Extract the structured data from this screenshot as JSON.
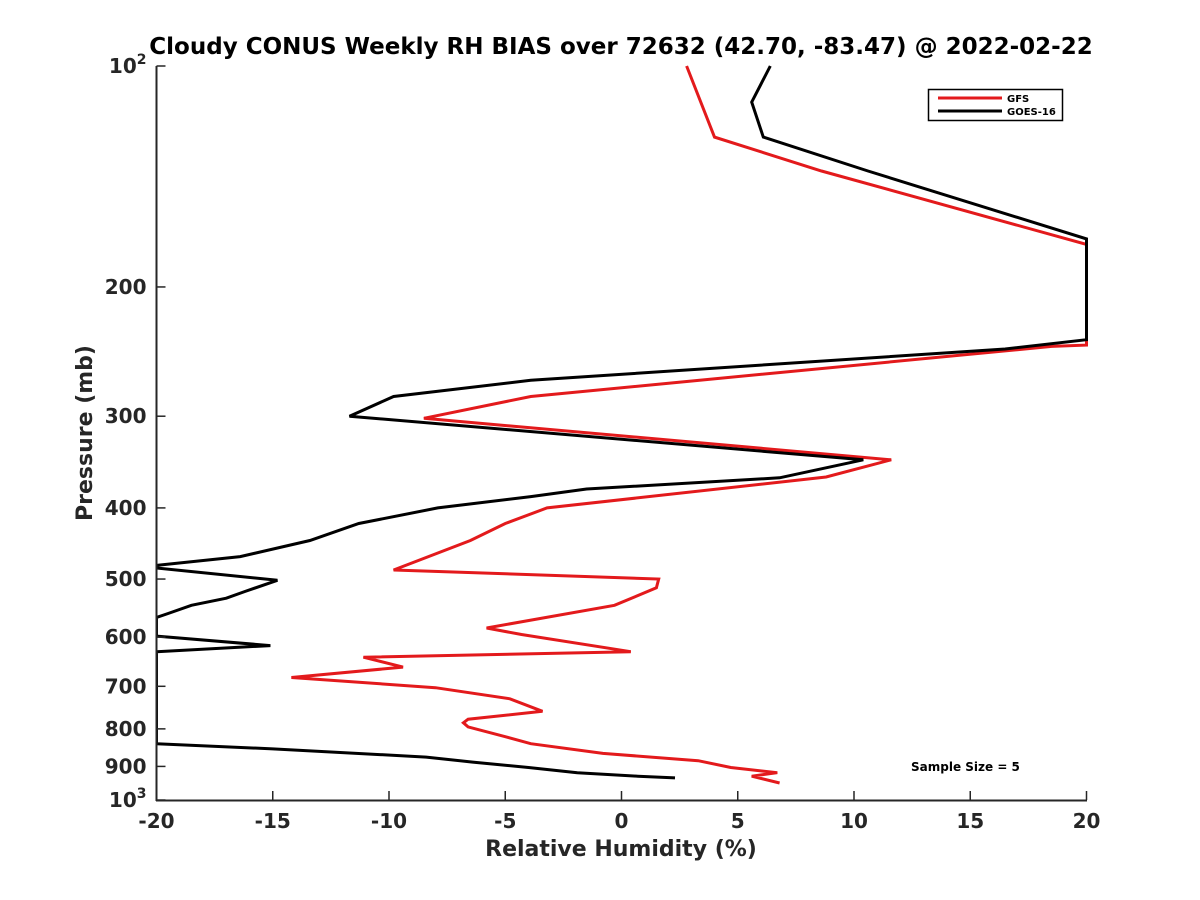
{
  "chart_data": {
    "type": "line",
    "title": "Cloudy CONUS Weekly RH BIAS over 72632 (42.70, -83.47) @ 2022-02-22",
    "xlabel": "Relative Humidity (%)",
    "ylabel": "Pressure (mb)",
    "xlim": [
      -20,
      20
    ],
    "ylim": [
      100,
      1000
    ],
    "y_scale": "log",
    "y_reversed": true,
    "grid": false,
    "legend_position": "top-right",
    "annotation": "Sample Size = 5",
    "x_ticks": [
      "-20",
      "-15",
      "-10",
      "-5",
      "0",
      "5",
      "10",
      "15",
      "20"
    ],
    "y_ticks": [
      {
        "value": 100,
        "base": "10",
        "exp": "2"
      },
      {
        "value": 200,
        "label": "200"
      },
      {
        "value": 300,
        "label": "300"
      },
      {
        "value": 400,
        "label": "400"
      },
      {
        "value": 500,
        "label": "500"
      },
      {
        "value": 600,
        "label": "600"
      },
      {
        "value": 700,
        "label": "700"
      },
      {
        "value": 800,
        "label": "800"
      },
      {
        "value": 900,
        "label": "900"
      },
      {
        "value": 1000,
        "base": "10",
        "exp": "3"
      }
    ],
    "series": [
      {
        "name": "GFS",
        "color": "#e31a1c",
        "points": [
          [
            2.8,
            100
          ],
          [
            4.0,
            125
          ],
          [
            8.6,
            139
          ],
          [
            20.0,
            175
          ],
          [
            20.0,
            240
          ],
          [
            18.5,
            241
          ],
          [
            -3.9,
            282
          ],
          [
            -8.5,
            302
          ],
          [
            11.6,
            344
          ],
          [
            8.8,
            363
          ],
          [
            -3.2,
            400
          ],
          [
            -5.0,
            420
          ],
          [
            -6.5,
            443
          ],
          [
            -9.8,
            486
          ],
          [
            1.6,
            500
          ],
          [
            1.5,
            514
          ],
          [
            -0.3,
            543
          ],
          [
            -5.8,
            583
          ],
          [
            -4.3,
            595
          ],
          [
            0.4,
            628
          ],
          [
            -11.1,
            639
          ],
          [
            -9.4,
            659
          ],
          [
            -14.2,
            681
          ],
          [
            -8.0,
            703
          ],
          [
            -4.8,
            728
          ],
          [
            -3.4,
            757
          ],
          [
            -6.6,
            776
          ],
          [
            -6.8,
            785
          ],
          [
            -6.6,
            795
          ],
          [
            -5.0,
            820
          ],
          [
            -3.9,
            838
          ],
          [
            -0.8,
            864
          ],
          [
            3.3,
            884
          ],
          [
            4.7,
            903
          ],
          [
            6.7,
            918
          ],
          [
            5.6,
            928
          ],
          [
            6.8,
            948
          ]
        ]
      },
      {
        "name": "GOES-16",
        "color": "#000000",
        "points": [
          [
            6.4,
            100
          ],
          [
            5.6,
            112
          ],
          [
            6.1,
            125
          ],
          [
            10.6,
            139
          ],
          [
            20.0,
            172
          ],
          [
            20.0,
            236
          ],
          [
            16.5,
            243
          ],
          [
            -3.9,
            268
          ],
          [
            -9.8,
            282
          ],
          [
            -11.7,
            300
          ],
          [
            10.4,
            344
          ],
          [
            6.8,
            364
          ],
          [
            -1.5,
            377
          ],
          [
            -3.9,
            386
          ],
          [
            -7.9,
            400
          ],
          [
            -11.3,
            420
          ],
          [
            -13.4,
            443
          ],
          [
            -16.4,
            466
          ],
          [
            -20.0,
            479
          ],
          [
            -20.0,
            483
          ],
          [
            -14.8,
            502
          ],
          [
            -16.2,
            520
          ],
          [
            -17.0,
            531
          ],
          [
            -18.5,
            543
          ],
          [
            -19.5,
            557
          ],
          [
            -20.0,
            564
          ],
          [
            -20.0,
            598
          ],
          [
            -15.1,
            616
          ],
          [
            -20.0,
            628
          ],
          [
            -20.0,
            838
          ],
          [
            -15.0,
            852
          ],
          [
            -8.4,
            874
          ],
          [
            -6.4,
            888
          ],
          [
            -4.0,
            903
          ],
          [
            -1.9,
            918
          ],
          [
            0.7,
            928
          ],
          [
            2.3,
            933
          ]
        ]
      }
    ]
  }
}
